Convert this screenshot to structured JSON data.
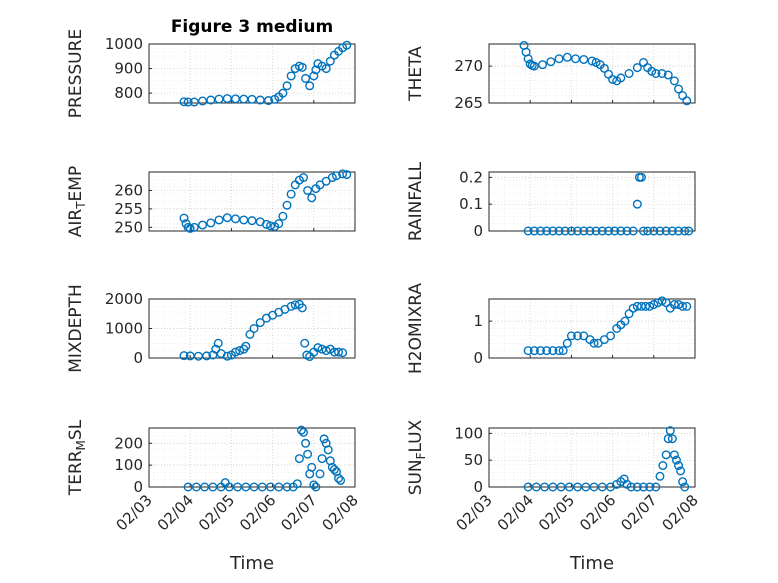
{
  "chart_data": [
    {
      "type": "scatter",
      "title": "Figure 3 medium",
      "ylabel": "PRESSURE",
      "xlabel": "",
      "xlim": [
        3,
        8
      ],
      "ylim": [
        760,
        1000
      ],
      "yticks": [
        800,
        900,
        1000
      ],
      "xticks": [
        3,
        4,
        5,
        6,
        7,
        8
      ],
      "xticklabels": [],
      "x": [
        3.85,
        3.95,
        4.1,
        4.3,
        4.5,
        4.7,
        4.9,
        5.1,
        5.3,
        5.5,
        5.7,
        5.9,
        6.05,
        6.15,
        6.25,
        6.35,
        6.45,
        6.55,
        6.65,
        6.72,
        6.8,
        6.9,
        7.0,
        7.05,
        7.1,
        7.2,
        7.3,
        7.4,
        7.5,
        7.6,
        7.7,
        7.8
      ],
      "y": [
        765,
        764,
        764,
        768,
        772,
        776,
        778,
        777,
        776,
        775,
        772,
        770,
        775,
        785,
        800,
        830,
        870,
        900,
        910,
        905,
        860,
        830,
        870,
        895,
        920,
        910,
        900,
        930,
        955,
        970,
        985,
        995
      ]
    },
    {
      "type": "scatter",
      "title": "",
      "ylabel": "THETA",
      "xlabel": "",
      "xlim": [
        3,
        8
      ],
      "ylim": [
        265,
        273
      ],
      "yticks": [
        265,
        270
      ],
      "xticks": [
        3,
        4,
        5,
        6,
        7,
        8
      ],
      "xticklabels": [],
      "x": [
        3.85,
        3.9,
        3.95,
        4.0,
        4.05,
        4.1,
        4.3,
        4.5,
        4.7,
        4.9,
        5.1,
        5.3,
        5.5,
        5.6,
        5.7,
        5.8,
        5.9,
        6.0,
        6.1,
        6.2,
        6.4,
        6.6,
        6.75,
        6.85,
        6.95,
        7.05,
        7.2,
        7.35,
        7.5,
        7.6,
        7.7,
        7.8
      ],
      "y": [
        272.8,
        271.9,
        271.0,
        270.3,
        270.1,
        270.0,
        270.2,
        270.6,
        271.0,
        271.2,
        271.0,
        270.9,
        270.7,
        270.5,
        270.2,
        269.7,
        268.9,
        268.2,
        268.0,
        268.4,
        269.0,
        269.8,
        270.5,
        269.8,
        269.3,
        269.0,
        269.0,
        268.8,
        268.0,
        266.9,
        266.0,
        265.3
      ]
    },
    {
      "type": "scatter",
      "title": "",
      "ylabel": "AIR_TEMP",
      "xlabel": "",
      "xlim": [
        3,
        8
      ],
      "ylim": [
        249,
        265
      ],
      "yticks": [
        250,
        255,
        260
      ],
      "xticks": [
        3,
        4,
        5,
        6,
        7,
        8
      ],
      "xticklabels": [],
      "x": [
        3.85,
        3.9,
        3.95,
        4.0,
        4.1,
        4.3,
        4.5,
        4.7,
        4.9,
        5.1,
        5.3,
        5.5,
        5.7,
        5.85,
        5.95,
        6.05,
        6.15,
        6.25,
        6.35,
        6.45,
        6.55,
        6.65,
        6.75,
        6.85,
        6.95,
        7.05,
        7.15,
        7.3,
        7.45,
        7.55,
        7.7,
        7.8
      ],
      "y": [
        252.5,
        251.0,
        250.0,
        249.7,
        250.0,
        250.6,
        251.2,
        252.0,
        252.6,
        252.3,
        252.0,
        251.8,
        251.5,
        250.8,
        250.4,
        250.2,
        251.0,
        253.0,
        256.0,
        259.0,
        261.5,
        262.8,
        263.5,
        260.0,
        258.0,
        260.5,
        261.5,
        262.5,
        263.5,
        264.0,
        264.5,
        264.3
      ]
    },
    {
      "type": "scatter",
      "title": "",
      "ylabel": "RAINFALL",
      "xlabel": "",
      "xlim": [
        3,
        8
      ],
      "ylim": [
        0,
        0.22
      ],
      "yticks": [
        0,
        0.1,
        0.2
      ],
      "xticks": [
        3,
        4,
        5,
        6,
        7,
        8
      ],
      "xticklabels": [],
      "x": [
        3.95,
        4.1,
        4.25,
        4.4,
        4.55,
        4.7,
        4.85,
        5.0,
        5.15,
        5.3,
        5.45,
        5.6,
        5.75,
        5.9,
        6.05,
        6.2,
        6.35,
        6.5,
        6.6,
        6.65,
        6.7,
        6.75,
        6.85,
        7.0,
        7.15,
        7.3,
        7.45,
        7.6,
        7.75,
        7.85
      ],
      "y": [
        0,
        0,
        0,
        0,
        0,
        0,
        0,
        0,
        0,
        0,
        0,
        0,
        0,
        0,
        0,
        0,
        0,
        0,
        0.1,
        0.2,
        0.2,
        0,
        0,
        0,
        0,
        0,
        0,
        0,
        0,
        0
      ]
    },
    {
      "type": "scatter",
      "title": "",
      "ylabel": "MIXDEPTH",
      "xlabel": "",
      "xlim": [
        3,
        8
      ],
      "ylim": [
        0,
        2000
      ],
      "yticks": [
        0,
        1000,
        2000
      ],
      "xticks": [
        3,
        4,
        5,
        6,
        7,
        8
      ],
      "xticklabels": [],
      "x": [
        3.85,
        4.0,
        4.2,
        4.4,
        4.55,
        4.62,
        4.68,
        4.75,
        4.9,
        5.0,
        5.1,
        5.2,
        5.3,
        5.35,
        5.45,
        5.55,
        5.7,
        5.85,
        6.0,
        6.15,
        6.3,
        6.45,
        6.55,
        6.65,
        6.72,
        6.78,
        6.83,
        6.9,
        7.0,
        7.1,
        7.2,
        7.3,
        7.4,
        7.5,
        7.6,
        7.7
      ],
      "y": [
        80,
        70,
        60,
        70,
        100,
        300,
        500,
        150,
        60,
        100,
        200,
        250,
        300,
        400,
        800,
        1000,
        1200,
        1350,
        1450,
        1550,
        1650,
        1750,
        1800,
        1820,
        1700,
        500,
        100,
        50,
        200,
        350,
        300,
        250,
        300,
        200,
        200,
        180
      ]
    },
    {
      "type": "scatter",
      "title": "",
      "ylabel": "H2OMIXRA",
      "xlabel": "",
      "xlim": [
        3,
        8
      ],
      "ylim": [
        0,
        1.6
      ],
      "yticks": [
        0,
        1
      ],
      "xticks": [
        3,
        4,
        5,
        6,
        7,
        8
      ],
      "xticklabels": [],
      "x": [
        3.95,
        4.1,
        4.25,
        4.4,
        4.55,
        4.7,
        4.8,
        4.9,
        5.0,
        5.15,
        5.3,
        5.45,
        5.55,
        5.65,
        5.8,
        5.95,
        6.1,
        6.2,
        6.3,
        6.4,
        6.5,
        6.6,
        6.7,
        6.8,
        6.9,
        7.0,
        7.1,
        7.2,
        7.3,
        7.4,
        7.5,
        7.6,
        7.7,
        7.8
      ],
      "y": [
        0.2,
        0.2,
        0.2,
        0.2,
        0.2,
        0.2,
        0.2,
        0.4,
        0.6,
        0.6,
        0.6,
        0.5,
        0.4,
        0.4,
        0.5,
        0.6,
        0.8,
        0.9,
        1.0,
        1.2,
        1.35,
        1.4,
        1.4,
        1.4,
        1.4,
        1.45,
        1.5,
        1.55,
        1.5,
        1.35,
        1.45,
        1.45,
        1.4,
        1.4
      ]
    },
    {
      "type": "scatter",
      "title": "",
      "ylabel": "TERR_MSL",
      "xlabel": "Time",
      "xlim": [
        3,
        8
      ],
      "ylim": [
        0,
        270
      ],
      "yticks": [
        0,
        100,
        200
      ],
      "xticks": [
        3,
        4,
        5,
        6,
        7,
        8
      ],
      "xticklabels": [
        "02/03",
        "02/04",
        "02/05",
        "02/06",
        "02/07",
        "02/08"
      ],
      "x": [
        3.95,
        4.15,
        4.35,
        4.55,
        4.75,
        4.85,
        4.95,
        5.15,
        5.35,
        5.55,
        5.75,
        5.95,
        6.15,
        6.35,
        6.5,
        6.6,
        6.65,
        6.7,
        6.75,
        6.8,
        6.85,
        6.9,
        6.95,
        7.0,
        7.05,
        7.15,
        7.2,
        7.25,
        7.3,
        7.35,
        7.4,
        7.45,
        7.5,
        7.55,
        7.6,
        7.65
      ],
      "y": [
        0,
        0,
        0,
        0,
        0,
        20,
        0,
        0,
        0,
        0,
        0,
        0,
        0,
        0,
        0,
        15,
        130,
        260,
        250,
        200,
        150,
        60,
        90,
        10,
        0,
        60,
        130,
        220,
        200,
        170,
        120,
        90,
        80,
        70,
        40,
        30
      ]
    },
    {
      "type": "scatter",
      "title": "",
      "ylabel": "SUN_FLUX",
      "xlabel": "Time",
      "xlim": [
        3,
        8
      ],
      "ylim": [
        0,
        110
      ],
      "yticks": [
        0,
        50,
        100
      ],
      "xticks": [
        3,
        4,
        5,
        6,
        7,
        8
      ],
      "xticklabels": [
        "02/03",
        "02/04",
        "02/05",
        "02/06",
        "02/07",
        "02/08"
      ],
      "x": [
        3.95,
        4.15,
        4.35,
        4.55,
        4.75,
        4.95,
        5.15,
        5.35,
        5.55,
        5.75,
        5.95,
        6.1,
        6.2,
        6.28,
        6.35,
        6.45,
        6.6,
        6.75,
        6.9,
        7.05,
        7.15,
        7.22,
        7.3,
        7.35,
        7.4,
        7.45,
        7.5,
        7.55,
        7.6,
        7.65,
        7.7,
        7.75
      ],
      "y": [
        0,
        0,
        0,
        0,
        0,
        0,
        0,
        0,
        0,
        0,
        0,
        5,
        10,
        15,
        5,
        0,
        0,
        0,
        0,
        0,
        20,
        40,
        60,
        90,
        105,
        90,
        60,
        50,
        40,
        30,
        10,
        0
      ]
    }
  ],
  "colors": {
    "marker": "#0072bd",
    "axis": "#262626",
    "grid": "#c9c9c9"
  }
}
